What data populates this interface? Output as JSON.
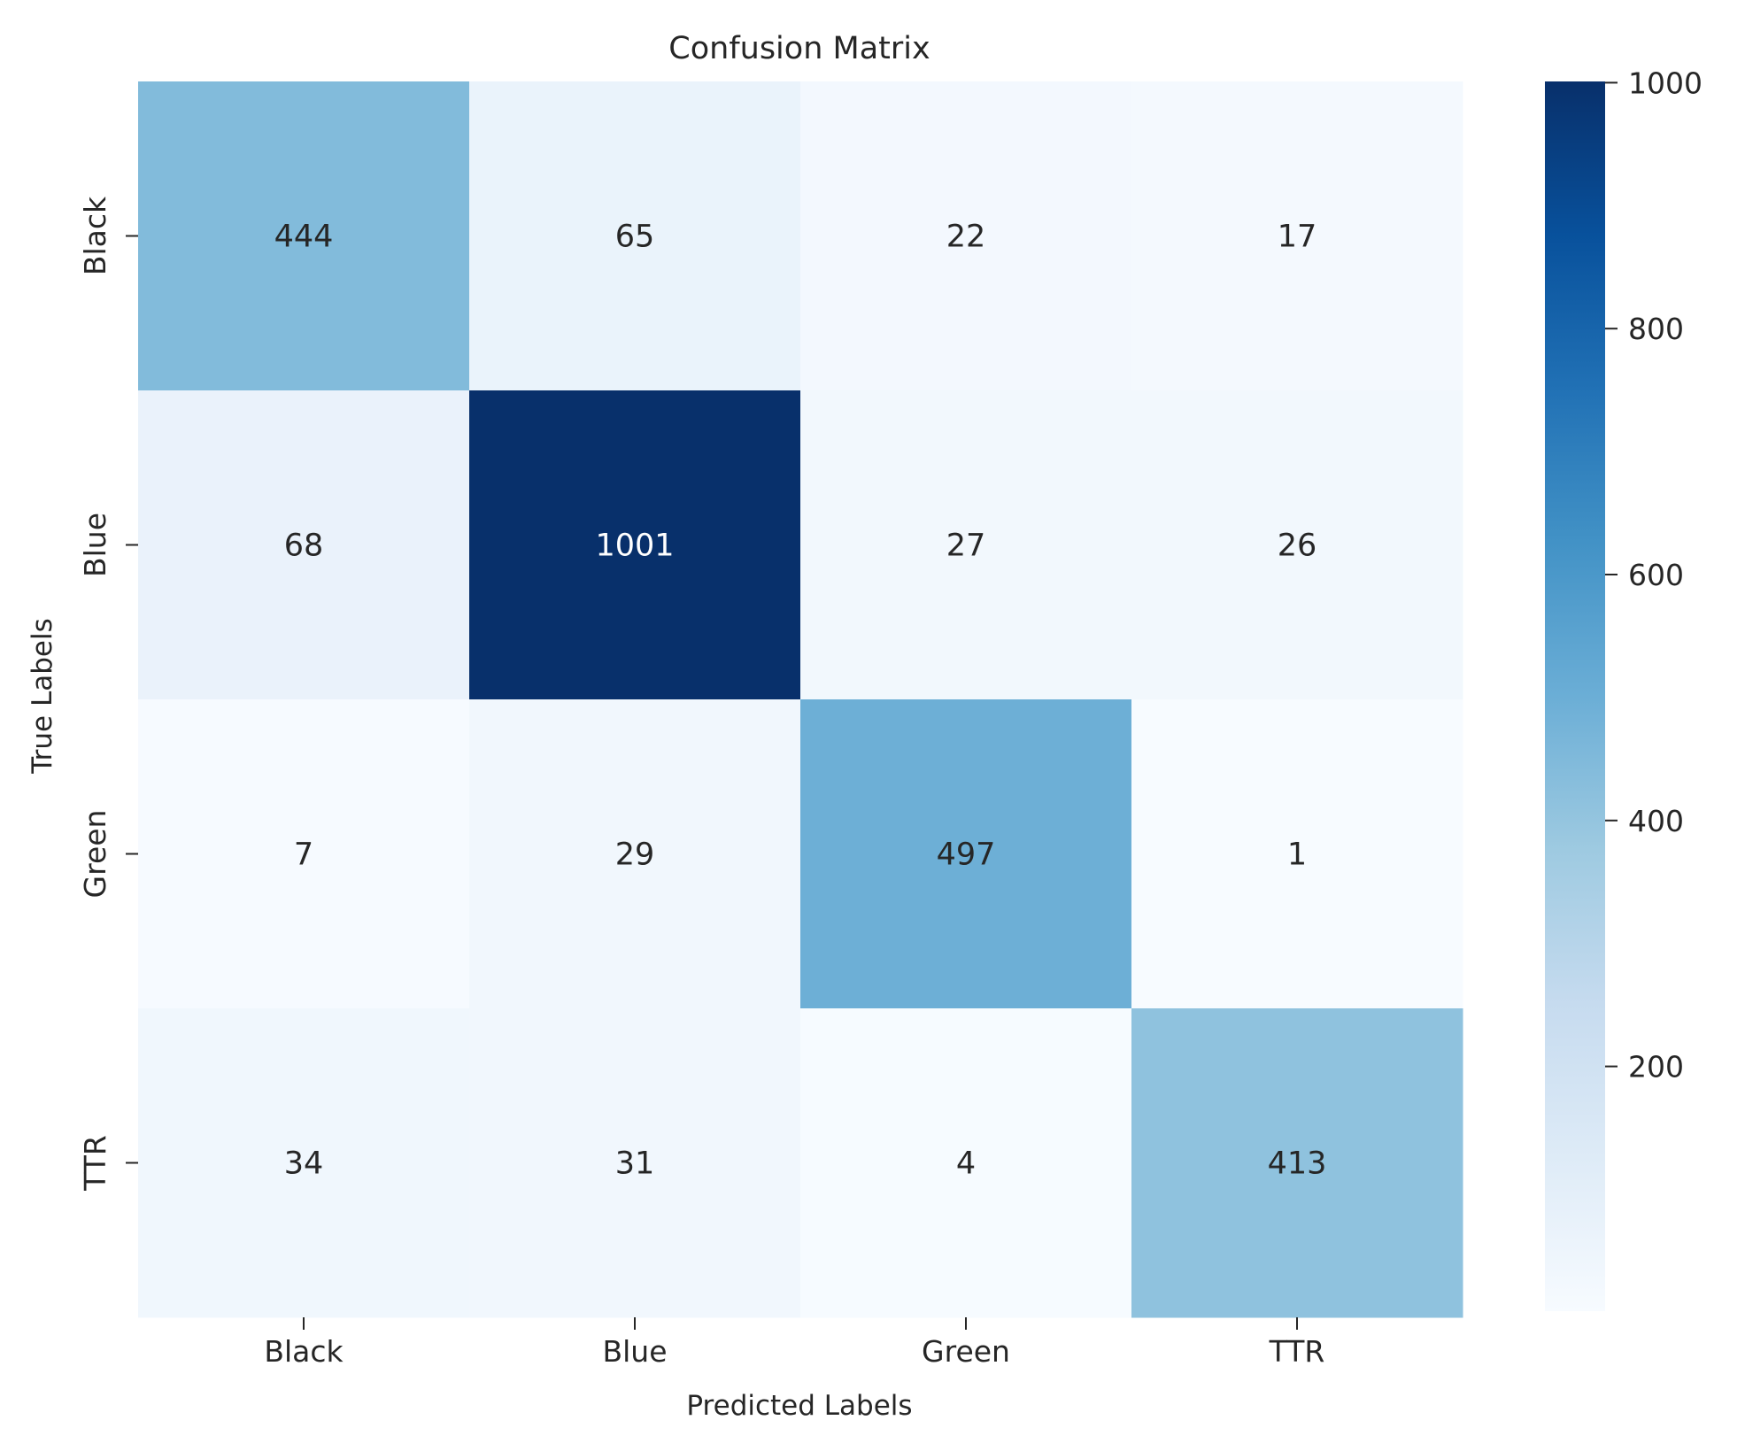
{
  "chart_data": {
    "type": "heatmap",
    "title": "Confusion Matrix",
    "xlabel": "Predicted Labels",
    "ylabel": "True Labels",
    "x_categories": [
      "Black",
      "Blue",
      "Green",
      "TTR"
    ],
    "y_categories": [
      "Black",
      "Blue",
      "Green",
      "TTR"
    ],
    "values": [
      [
        444,
        65,
        22,
        17
      ],
      [
        68,
        1001,
        27,
        26
      ],
      [
        7,
        29,
        497,
        1
      ],
      [
        34,
        31,
        4,
        413
      ]
    ],
    "colormap": "Blues",
    "colorbar": {
      "min": 1,
      "max": 1001,
      "ticks": [
        200,
        400,
        600,
        800,
        1000
      ],
      "tick_labels": [
        "200",
        "400",
        "600",
        "800",
        "1000"
      ]
    },
    "colors": {
      "low": "#f7fbff",
      "high": "#08306b",
      "text_dark": "#262626",
      "text_light": "#ffffff"
    }
  }
}
